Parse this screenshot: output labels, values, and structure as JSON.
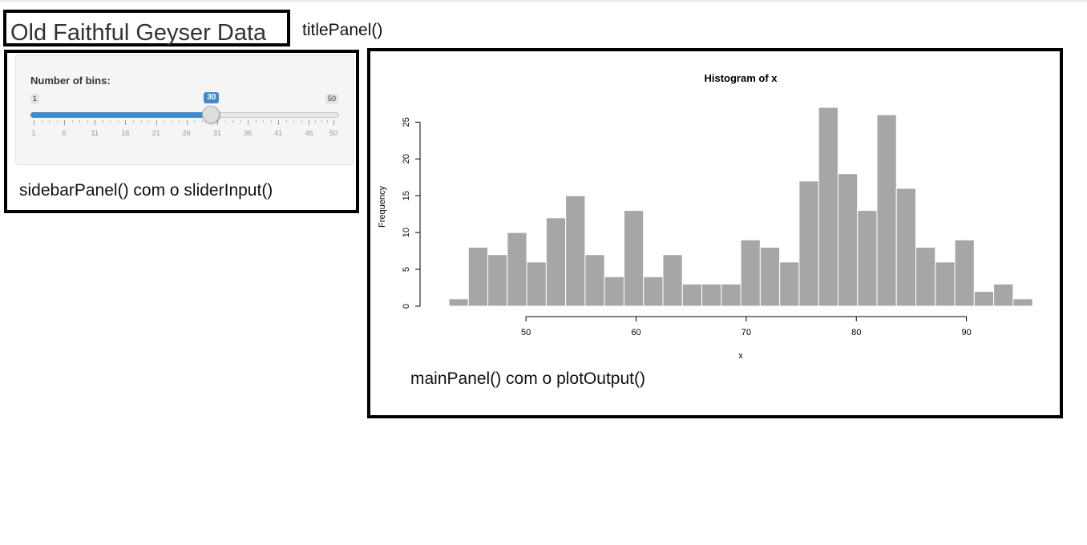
{
  "title": {
    "text": "Old Faithful Geyser Data",
    "annotation": "titlePanel()"
  },
  "sidebar": {
    "slider": {
      "label": "Number of bins:",
      "min": 1,
      "max": 50,
      "value": 30,
      "min_label": "1",
      "max_label": "50",
      "value_label": "30",
      "tick_labels": [
        "1",
        "6",
        "11",
        "16",
        "21",
        "26",
        "31",
        "36",
        "41",
        "46",
        "50"
      ]
    },
    "annotation": "sidebarPanel() com o sliderInput()"
  },
  "main": {
    "annotation": "mainPanel() com o plotOutput()"
  },
  "colors": {
    "slider_fill": "#428bca",
    "bar_fill": "#a6a6a6",
    "bar_border": "#ffffff"
  },
  "chart_data": {
    "type": "bar",
    "title": "Histogram of x",
    "xlabel": "x",
    "ylabel": "Frequency",
    "bin_start": 43.0,
    "bin_width": 1.767,
    "values": [
      1,
      8,
      7,
      10,
      6,
      12,
      15,
      7,
      4,
      13,
      4,
      7,
      3,
      3,
      3,
      9,
      8,
      6,
      17,
      27,
      18,
      13,
      26,
      16,
      8,
      6,
      9,
      2,
      3,
      1
    ],
    "xticks": [
      50,
      60,
      70,
      80,
      90
    ],
    "yticks": [
      0,
      5,
      10,
      15,
      20,
      25
    ],
    "xlim": [
      43,
      96
    ],
    "ylim": [
      0,
      27
    ]
  }
}
